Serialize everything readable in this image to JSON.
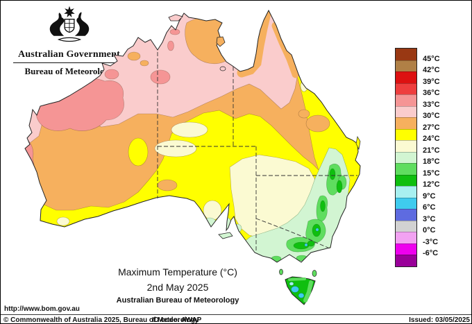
{
  "header": {
    "government": "Australian Government",
    "bureau": "Bureau of Meteorology"
  },
  "legend": {
    "unit": "°C",
    "cells": [
      {
        "range": "above 45",
        "color": "#993813"
      },
      {
        "range": "42 to 45",
        "color": "#B08046"
      },
      {
        "range": "39 to 42",
        "color": "#DD1111"
      },
      {
        "range": "36 to 39",
        "color": "#EE3E3E"
      },
      {
        "range": "33 to 36",
        "color": "#F59595"
      },
      {
        "range": "30 to 33",
        "color": "#FACCCC"
      },
      {
        "range": "27 to 30",
        "color": "#F6B05E"
      },
      {
        "range": "24 to 27",
        "color": "#FFFF00"
      },
      {
        "range": "21 to 24",
        "color": "#FBFAD2"
      },
      {
        "range": "18 to 21",
        "color": "#D2F5D2"
      },
      {
        "range": "15 to 18",
        "color": "#5FDD5F"
      },
      {
        "range": "12 to 15",
        "color": "#0FBF0F"
      },
      {
        "range": "9 to 12",
        "color": "#A8F0F0"
      },
      {
        "range": "6 to 9",
        "color": "#3FCBEE"
      },
      {
        "range": "3 to 6",
        "color": "#5E6BE0"
      },
      {
        "range": "0 to 3",
        "color": "#D2D2D2"
      },
      {
        "range": "-3 to 0",
        "color": "#F2A2F2"
      },
      {
        "range": "-6 to -3",
        "color": "#EE00EE"
      },
      {
        "range": "below -6",
        "color": "#990099"
      }
    ],
    "boundary_labels": [
      "45°C",
      "42°C",
      "39°C",
      "36°C",
      "33°C",
      "30°C",
      "27°C",
      "24°C",
      "21°C",
      "18°C",
      "15°C",
      "12°C",
      "9°C",
      "6°C",
      "3°C",
      "0°C",
      "-3°C",
      "-6°C"
    ]
  },
  "title_block": {
    "line1": "Maximum Temperature (°C)",
    "line2": "2nd May 2025",
    "line3": "Australian Bureau of Meteorology"
  },
  "footer": {
    "url": "http://www.bom.gov.au",
    "copyright": "© Commonwealth of Australia 2025, Bureau of Meteorology",
    "id_code": "ID code: AWAP",
    "issued": "Issued: 03/05/2025"
  }
}
